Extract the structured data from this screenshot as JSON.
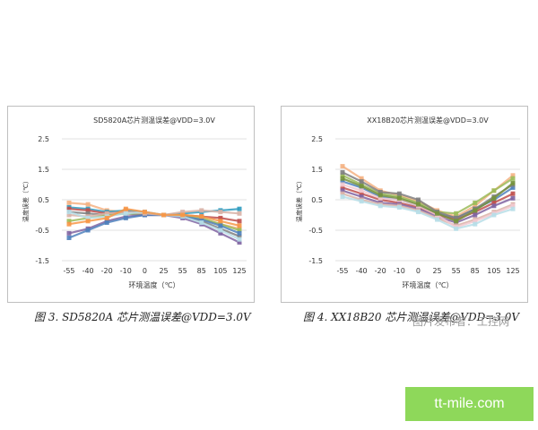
{
  "chart_data": [
    {
      "type": "line",
      "title": "SD5820A芯片测温误差@VDD=3.0V",
      "ylabel": "温度误差（℃）",
      "xlabel": "环境温度（℃）",
      "categories": [
        "-55",
        "-40",
        "-20",
        "-10",
        "0",
        "25",
        "55",
        "85",
        "105",
        "125"
      ],
      "yticks": [
        "2.5",
        "1.5",
        "0.5",
        "-0.5",
        "-1.5"
      ],
      "ylim": [
        -1.5,
        2.5
      ],
      "grid": true,
      "legend": "none",
      "series": [
        {
          "values": [
            0.4,
            0.35,
            0.15,
            0.1,
            0.05,
            0.0,
            -0.05,
            -0.15,
            -0.3,
            -0.45
          ],
          "color": "#f4b183"
        },
        {
          "values": [
            0.25,
            0.2,
            0.1,
            0.15,
            0.1,
            0.0,
            0.05,
            0.1,
            0.15,
            0.2
          ],
          "color": "#2e9bbf"
        },
        {
          "values": [
            0.2,
            0.15,
            0.05,
            0.1,
            0.05,
            0.0,
            0.0,
            -0.05,
            -0.1,
            -0.2
          ],
          "color": "#c0504d"
        },
        {
          "values": [
            0.1,
            0.05,
            0.0,
            0.05,
            0.0,
            0.0,
            -0.05,
            -0.2,
            -0.45,
            -0.7
          ],
          "color": "#7f7f7f"
        },
        {
          "values": [
            -0.2,
            -0.1,
            0.0,
            0.05,
            0.05,
            0.0,
            0.0,
            -0.1,
            -0.3,
            -0.5
          ],
          "color": "#9bbb59"
        },
        {
          "values": [
            -0.6,
            -0.45,
            -0.2,
            -0.05,
            0.0,
            0.0,
            -0.1,
            -0.3,
            -0.6,
            -0.9
          ],
          "color": "#8064a2"
        },
        {
          "values": [
            -0.75,
            -0.5,
            -0.25,
            -0.1,
            0.0,
            0.0,
            -0.05,
            -0.15,
            -0.35,
            -0.6
          ],
          "color": "#4f81bd"
        },
        {
          "values": [
            0.0,
            -0.05,
            0.05,
            0.1,
            0.05,
            0.0,
            0.1,
            0.15,
            0.1,
            0.05
          ],
          "color": "#d9b3a7"
        },
        {
          "values": [
            0.1,
            -0.1,
            -0.05,
            0.05,
            0.1,
            0.0,
            -0.05,
            -0.25,
            -0.5,
            -0.8
          ],
          "color": "#b7dee8"
        },
        {
          "values": [
            -0.3,
            -0.2,
            -0.1,
            0.2,
            0.1,
            0.0,
            0.0,
            -0.05,
            -0.2,
            -0.35
          ],
          "color": "#f79646"
        }
      ]
    },
    {
      "type": "line",
      "title": "XX18B20芯片测温误差@VDD=3.0V",
      "ylabel": "温度误差（℃）",
      "xlabel": "环境温度（℃）",
      "categories": [
        "-55",
        "-40",
        "-20",
        "-10",
        "0",
        "25",
        "55",
        "85",
        "105",
        "125"
      ],
      "yticks": [
        "2.5",
        "1.5",
        "0.5",
        "-0.5",
        "-1.5"
      ],
      "ylim": [
        -1.5,
        2.5
      ],
      "grid": true,
      "legend": "none",
      "series": [
        {
          "values": [
            1.6,
            1.2,
            0.8,
            0.65,
            0.45,
            0.15,
            -0.05,
            0.3,
            0.8,
            1.3
          ],
          "color": "#f4b183"
        },
        {
          "values": [
            1.3,
            1.0,
            0.7,
            0.6,
            0.4,
            0.1,
            0.05,
            0.4,
            0.8,
            1.2
          ],
          "color": "#9bbb59"
        },
        {
          "values": [
            1.1,
            0.9,
            0.6,
            0.5,
            0.3,
            0.05,
            -0.1,
            0.2,
            0.5,
            0.9
          ],
          "color": "#4f81bd"
        },
        {
          "values": [
            0.9,
            0.7,
            0.5,
            0.4,
            0.25,
            0.0,
            -0.15,
            0.1,
            0.4,
            0.7
          ],
          "color": "#c0504d"
        },
        {
          "values": [
            0.8,
            0.6,
            0.4,
            0.35,
            0.2,
            -0.05,
            -0.25,
            0.0,
            0.3,
            0.55
          ],
          "color": "#8064a2"
        },
        {
          "values": [
            0.7,
            0.5,
            0.35,
            0.3,
            0.15,
            -0.1,
            -0.35,
            -0.15,
            0.1,
            0.35
          ],
          "color": "#d9b3a7"
        },
        {
          "values": [
            1.0,
            0.8,
            0.55,
            0.5,
            0.3,
            0.0,
            -0.4,
            -0.2,
            0.05,
            0.3
          ],
          "color": "#f2c9d0"
        },
        {
          "values": [
            1.4,
            1.1,
            0.75,
            0.7,
            0.5,
            0.1,
            -0.1,
            0.2,
            0.6,
            1.0
          ],
          "color": "#7f7f7f"
        },
        {
          "values": [
            0.6,
            0.45,
            0.3,
            0.25,
            0.1,
            -0.15,
            -0.45,
            -0.3,
            0.0,
            0.2
          ],
          "color": "#b7dee8"
        },
        {
          "values": [
            1.2,
            0.95,
            0.65,
            0.55,
            0.35,
            0.05,
            -0.2,
            0.15,
            0.55,
            1.05
          ],
          "color": "#76923c"
        }
      ]
    }
  ],
  "captions": [
    "图 3.  SD5820A 芯片测温误差@VDD=3.0V",
    "图 4.  XX18B20 芯片测温误差@VDD=3.0V"
  ],
  "watermark": "图片发布者：工控网",
  "banner": "tt-mile.com"
}
